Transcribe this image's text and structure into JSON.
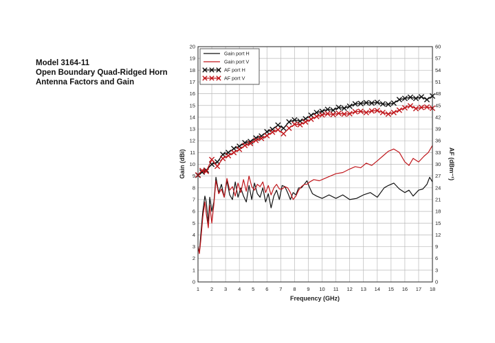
{
  "caption": {
    "line1": "Model 3164-11",
    "line2": "Open Boundary Quad-Ridged Horn",
    "line3": "Antenna Factors and Gain"
  },
  "chart_data": {
    "type": "line",
    "title": "",
    "xlabel": "Frequency (GHz)",
    "ylabel": "Gain (dBi)",
    "y2label": "AF (dBm⁻¹)",
    "xlim": [
      1,
      18
    ],
    "ylim": [
      0,
      20
    ],
    "y2lim": [
      0,
      60
    ],
    "x_ticks": [
      1,
      2,
      3,
      4,
      5,
      6,
      7,
      8,
      9,
      10,
      11,
      12,
      13,
      14,
      15,
      16,
      17,
      18
    ],
    "y_ticks": [
      0,
      1,
      2,
      3,
      4,
      5,
      6,
      7,
      8,
      9,
      10,
      11,
      12,
      13,
      14,
      15,
      16,
      17,
      18,
      19,
      20
    ],
    "y2_ticks": [
      0,
      3,
      6,
      9,
      12,
      15,
      18,
      21,
      24,
      27,
      30,
      33,
      36,
      39,
      42,
      45,
      48,
      51,
      54,
      57,
      60
    ],
    "grid": true,
    "legend_position": "top-left",
    "series": [
      {
        "name": "Gain port H",
        "axis": "left",
        "color": "#111111",
        "marker": "none",
        "x": [
          1.0,
          1.1,
          1.2,
          1.35,
          1.5,
          1.6,
          1.75,
          1.85,
          2.0,
          2.15,
          2.3,
          2.5,
          2.7,
          2.9,
          3.1,
          3.3,
          3.5,
          3.7,
          3.9,
          4.1,
          4.3,
          4.5,
          4.7,
          4.9,
          5.1,
          5.3,
          5.5,
          5.7,
          5.9,
          6.1,
          6.3,
          6.5,
          6.7,
          6.9,
          7.1,
          7.3,
          7.5,
          7.7,
          7.9,
          8.1,
          8.3,
          8.5,
          8.7,
          8.9,
          9.1,
          9.3,
          9.6,
          10.0,
          10.5,
          11.0,
          11.5,
          12.0,
          12.5,
          13.0,
          13.5,
          14.0,
          14.5,
          14.8,
          15.2,
          15.6,
          16.0,
          16.3,
          16.6,
          17.0,
          17.3,
          17.6,
          17.8,
          18.0
        ],
        "values": [
          3.0,
          2.5,
          4.0,
          6.0,
          7.3,
          6.8,
          5.0,
          7.2,
          6.0,
          6.8,
          8.9,
          7.6,
          8.3,
          7.2,
          8.6,
          7.4,
          7.0,
          8.5,
          7.2,
          8.0,
          7.3,
          6.8,
          8.2,
          7.0,
          8.4,
          7.5,
          7.2,
          8.0,
          6.8,
          7.5,
          6.3,
          7.3,
          7.8,
          7.0,
          8.2,
          8.1,
          7.6,
          7.0,
          7.6,
          7.4,
          8.0,
          8.0,
          8.3,
          8.6,
          8.0,
          7.5,
          7.3,
          7.1,
          7.4,
          7.1,
          7.4,
          7.0,
          7.1,
          7.4,
          7.6,
          7.2,
          8.0,
          8.2,
          8.4,
          7.9,
          7.6,
          7.8,
          7.3,
          7.8,
          7.9,
          8.3,
          8.9,
          8.5
        ]
      },
      {
        "name": "Gain port V",
        "axis": "left",
        "color": "#c0161b",
        "marker": "none",
        "x": [
          1.0,
          1.1,
          1.2,
          1.35,
          1.5,
          1.6,
          1.75,
          1.85,
          2.0,
          2.15,
          2.3,
          2.5,
          2.7,
          2.9,
          3.1,
          3.3,
          3.5,
          3.7,
          3.9,
          4.1,
          4.3,
          4.5,
          4.7,
          4.9,
          5.1,
          5.3,
          5.5,
          5.7,
          5.9,
          6.1,
          6.3,
          6.5,
          6.7,
          6.9,
          7.1,
          7.3,
          7.5,
          7.7,
          7.9,
          8.1,
          8.3,
          8.5,
          8.7,
          8.9,
          9.1,
          9.4,
          9.8,
          10.2,
          10.6,
          11.0,
          11.5,
          12.0,
          12.4,
          12.8,
          13.2,
          13.6,
          14.0,
          14.4,
          14.8,
          15.2,
          15.6,
          16.0,
          16.3,
          16.6,
          17.0,
          17.4,
          17.7,
          18.0
        ],
        "values": [
          3.0,
          2.4,
          3.5,
          5.5,
          6.8,
          5.8,
          4.6,
          6.5,
          5.0,
          6.6,
          8.6,
          7.5,
          7.9,
          7.2,
          8.8,
          7.8,
          8.1,
          7.3,
          8.4,
          7.6,
          8.7,
          7.7,
          9.0,
          8.1,
          7.8,
          8.3,
          8.1,
          8.5,
          7.6,
          8.2,
          7.4,
          8.0,
          8.3,
          7.9,
          7.9,
          8.1,
          8.0,
          7.6,
          7.0,
          7.3,
          7.8,
          8.1,
          8.3,
          8.3,
          8.5,
          8.7,
          8.6,
          8.8,
          9.0,
          9.2,
          9.3,
          9.6,
          9.8,
          9.7,
          10.1,
          9.9,
          10.3,
          10.7,
          11.1,
          11.3,
          11.0,
          10.2,
          9.9,
          10.5,
          10.2,
          10.7,
          11.0,
          11.6
        ]
      },
      {
        "name": "AF port H",
        "axis": "right",
        "color": "#111111",
        "marker": "x",
        "x": [
          1.0,
          1.3,
          1.6,
          2.0,
          2.4,
          2.8,
          3.2,
          3.6,
          4.0,
          4.4,
          4.8,
          5.2,
          5.6,
          6.0,
          6.4,
          6.8,
          7.2,
          7.6,
          8.0,
          8.4,
          8.8,
          9.2,
          9.6,
          10.0,
          10.4,
          10.8,
          11.2,
          11.6,
          12.0,
          12.4,
          12.8,
          13.2,
          13.6,
          14.0,
          14.4,
          14.8,
          15.2,
          15.6,
          16.0,
          16.4,
          16.8,
          17.2,
          17.6,
          18.0
        ],
        "values": [
          27.2,
          28.0,
          28.5,
          30.0,
          30.6,
          32.5,
          33.0,
          34.0,
          34.6,
          35.5,
          35.8,
          36.7,
          37.2,
          38.3,
          38.9,
          40.0,
          39.2,
          40.8,
          41.3,
          41.0,
          41.6,
          42.5,
          43.2,
          43.5,
          44.0,
          43.8,
          44.5,
          44.3,
          44.8,
          45.4,
          45.5,
          45.7,
          45.6,
          45.8,
          45.4,
          45.3,
          45.6,
          46.5,
          46.8,
          47.1,
          46.8,
          47.2,
          46.5,
          47.4
        ]
      },
      {
        "name": "AF port V",
        "axis": "right",
        "color": "#c0161b",
        "marker": "x",
        "x": [
          1.0,
          1.3,
          1.6,
          2.0,
          2.4,
          2.8,
          3.2,
          3.6,
          4.0,
          4.4,
          4.8,
          5.2,
          5.6,
          6.0,
          6.4,
          6.8,
          7.2,
          7.6,
          8.0,
          8.4,
          8.8,
          9.2,
          9.6,
          10.0,
          10.4,
          10.8,
          11.2,
          11.6,
          12.0,
          12.4,
          12.8,
          13.2,
          13.6,
          14.0,
          14.4,
          14.8,
          15.2,
          15.6,
          16.0,
          16.4,
          16.8,
          17.2,
          17.6,
          18.0
        ],
        "values": [
          27.3,
          28.4,
          28.2,
          31.2,
          29.5,
          31.5,
          32.2,
          33.0,
          33.8,
          34.8,
          35.3,
          36.1,
          36.6,
          37.3,
          38.2,
          38.8,
          37.8,
          39.2,
          40.2,
          40.1,
          40.8,
          41.5,
          42.2,
          42.6,
          42.9,
          42.7,
          43.0,
          42.8,
          42.9,
          43.4,
          43.5,
          43.2,
          43.6,
          43.7,
          43.2,
          42.8,
          43.2,
          43.8,
          44.4,
          44.9,
          44.2,
          44.5,
          44.6,
          44.3
        ]
      }
    ]
  }
}
